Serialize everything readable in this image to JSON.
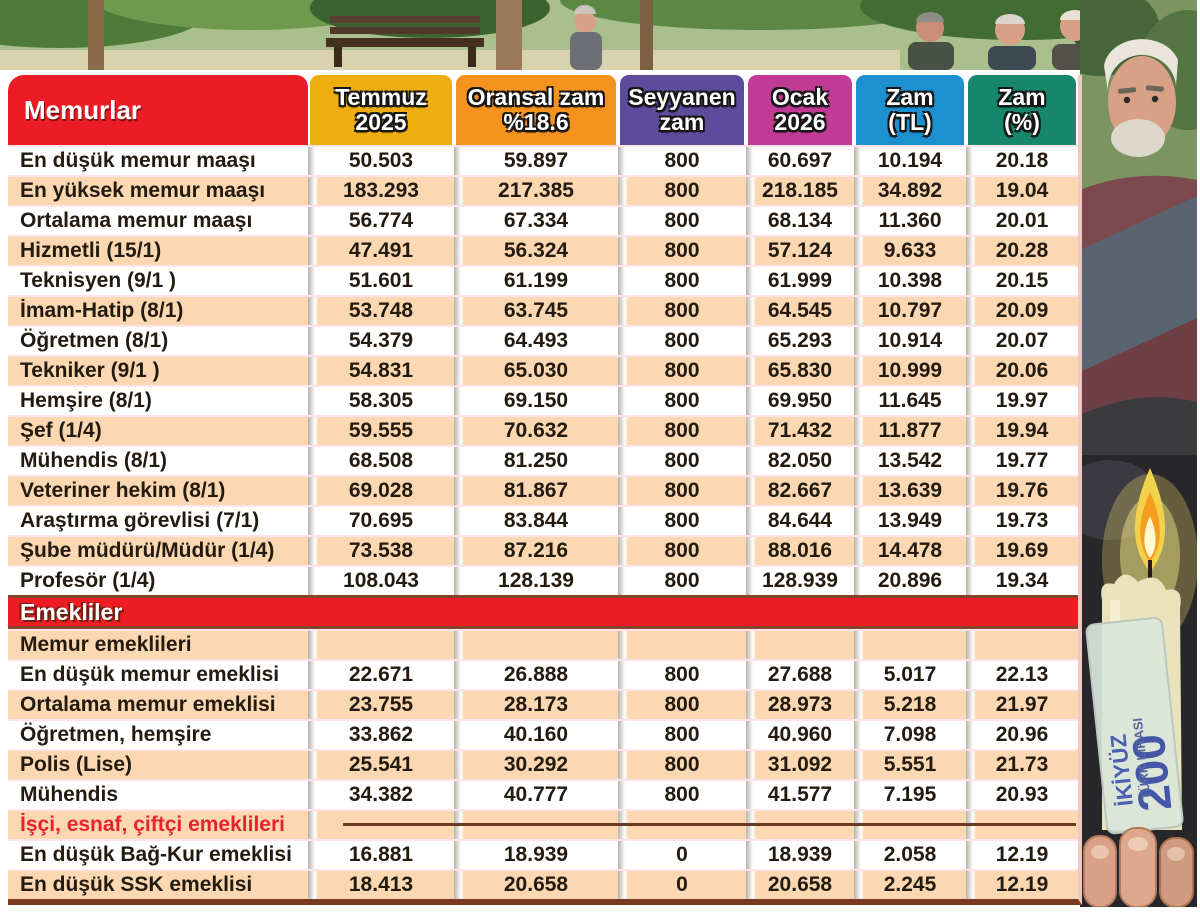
{
  "header": {
    "first_col": {
      "label": "Memurlar",
      "bg": "#ec1c24"
    },
    "columns": [
      {
        "line1": "Temmuz",
        "line2": "2025",
        "bg": "#eeae10"
      },
      {
        "line1": "Oransal zam",
        "line2": "%18.6",
        "bg": "#f6921e"
      },
      {
        "line1": "Seyyanen",
        "line2": "zam",
        "bg": "#5d4b9c"
      },
      {
        "line1": "Ocak",
        "line2": "2026",
        "bg": "#c13a94"
      },
      {
        "line1": "Zam",
        "line2": "(TL)",
        "bg": "#1d90cf"
      },
      {
        "line1": "Zam",
        "line2": "(%)",
        "bg": "#17876b"
      }
    ]
  },
  "chart_data": {
    "type": "table",
    "title": "Memurlar",
    "columns": [
      "Memurlar",
      "Temmuz 2025",
      "Oransal zam %18.6",
      "Seyyanen zam",
      "Ocak 2026",
      "Zam (TL)",
      "Zam (%)"
    ],
    "rows": [
      {
        "type": "data",
        "label": "En düşük memur maaşı",
        "values": [
          "50.503",
          "59.897",
          "800",
          "60.697",
          "10.194",
          "20.18"
        ]
      },
      {
        "type": "data",
        "label": "En yüksek memur maaşı",
        "values": [
          "183.293",
          "217.385",
          "800",
          "218.185",
          "34.892",
          "19.04"
        ]
      },
      {
        "type": "data",
        "label": "Ortalama memur maaşı",
        "values": [
          "56.774",
          "67.334",
          "800",
          "68.134",
          "11.360",
          "20.01"
        ]
      },
      {
        "type": "data",
        "label": "Hizmetli (15/1)",
        "values": [
          "47.491",
          "56.324",
          "800",
          "57.124",
          "9.633",
          "20.28"
        ]
      },
      {
        "type": "data",
        "label": "Teknisyen (9/1 )",
        "values": [
          "51.601",
          "61.199",
          "800",
          "61.999",
          "10.398",
          "20.15"
        ]
      },
      {
        "type": "data",
        "label": "İmam-Hatip (8/1)",
        "values": [
          "53.748",
          "63.745",
          "800",
          "64.545",
          "10.797",
          "20.09"
        ]
      },
      {
        "type": "data",
        "label": "Öğretmen (8/1)",
        "values": [
          "54.379",
          "64.493",
          "800",
          "65.293",
          "10.914",
          "20.07"
        ]
      },
      {
        "type": "data",
        "label": "Tekniker (9/1 )",
        "values": [
          "54.831",
          "65.030",
          "800",
          "65.830",
          "10.999",
          "20.06"
        ]
      },
      {
        "type": "data",
        "label": "Hemşire (8/1)",
        "values": [
          "58.305",
          "69.150",
          "800",
          "69.950",
          "11.645",
          "19.97"
        ]
      },
      {
        "type": "data",
        "label": "Şef (1/4)",
        "values": [
          "59.555",
          "70.632",
          "800",
          "71.432",
          "11.877",
          "19.94"
        ]
      },
      {
        "type": "data",
        "label": "Mühendis (8/1)",
        "values": [
          "68.508",
          "81.250",
          "800",
          "82.050",
          "13.542",
          "19.77"
        ]
      },
      {
        "type": "data",
        "label": "Veteriner hekim (8/1)",
        "values": [
          "69.028",
          "81.867",
          "800",
          "82.667",
          "13.639",
          "19.76"
        ]
      },
      {
        "type": "data",
        "label": "Araştırma görevlisi (7/1)",
        "values": [
          "70.695",
          "83.844",
          "800",
          "84.644",
          "13.949",
          "19.73"
        ]
      },
      {
        "type": "data",
        "label": "Şube müdürü/Müdür (1/4)",
        "values": [
          "73.538",
          "87.216",
          "800",
          "88.016",
          "14.478",
          "19.69"
        ]
      },
      {
        "type": "data",
        "label": "Profesör (1/4)",
        "values": [
          "108.043",
          "128.139",
          "800",
          "128.939",
          "20.896",
          "19.34"
        ]
      },
      {
        "type": "banner",
        "label": "Emekliler"
      },
      {
        "type": "subheader",
        "label": "Memur emeklileri"
      },
      {
        "type": "data",
        "label": "En düşük memur emeklisi",
        "values": [
          "22.671",
          "26.888",
          "800",
          "27.688",
          "5.017",
          "22.13"
        ]
      },
      {
        "type": "data",
        "label": "Ortalama memur emeklisi",
        "values": [
          "23.755",
          "28.173",
          "800",
          "28.973",
          "5.218",
          "21.97"
        ]
      },
      {
        "type": "data",
        "label": "Öğretmen, hemşire",
        "values": [
          "33.862",
          "40.160",
          "800",
          "40.960",
          "7.098",
          "20.96"
        ]
      },
      {
        "type": "data",
        "label": "Polis (Lise)",
        "values": [
          "25.541",
          "30.292",
          "800",
          "31.092",
          "5.551",
          "21.73"
        ]
      },
      {
        "type": "data",
        "label": "Mühendis",
        "values": [
          "34.382",
          "40.777",
          "800",
          "41.577",
          "7.195",
          "20.93"
        ]
      },
      {
        "type": "subheader",
        "label": "İşçi, esnaf, çiftçi emeklileri",
        "red": true,
        "rule": true
      },
      {
        "type": "data",
        "label": "En düşük Bağ-Kur emeklisi",
        "values": [
          "16.881",
          "18.939",
          "0",
          "18.939",
          "2.058",
          "12.19"
        ]
      },
      {
        "type": "data",
        "label": "En düşük SSK emeklisi",
        "values": [
          "18.413",
          "20.658",
          "0",
          "20.658",
          "2.245",
          "12.19"
        ]
      }
    ]
  },
  "colors": {
    "stripe_peach": "#fbd8b2",
    "row_separator": "#ffe3ea",
    "banner_red": "#ee1c23",
    "banner_border": "#82452a",
    "subsection_label_red": "#e8232b",
    "table_border_brown": "#7a3a20",
    "gutter_gray": "#b8b1a9"
  },
  "banknote": {
    "value": "200",
    "value_words": "İKİYÜZ",
    "currency": "TÜRK LİRASI"
  }
}
